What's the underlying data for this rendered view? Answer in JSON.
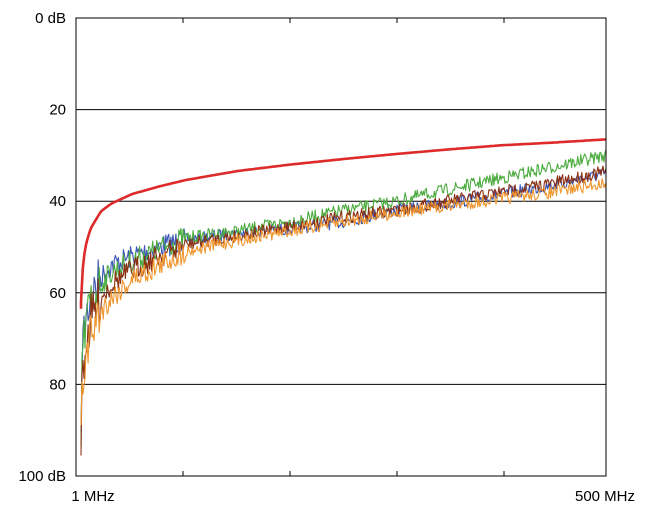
{
  "chart_data": {
    "type": "line",
    "x_start_label": "1 MHz",
    "x_end_label": "500 MHz",
    "x_range_mhz": [
      1,
      500
    ],
    "y_axis": {
      "direction": "downward",
      "range_db": [
        0,
        100
      ],
      "ticks": [
        {
          "value": 0,
          "label": "0 dB"
        },
        {
          "value": 20,
          "label": "20"
        },
        {
          "value": 40,
          "label": "40"
        },
        {
          "value": 60,
          "label": "60"
        },
        {
          "value": 80,
          "label": "80"
        },
        {
          "value": 100,
          "label": "100 dB"
        }
      ]
    },
    "grid": "horizontal lines at 0, 20, 40, 60, 80 dB",
    "series": [
      {
        "color": "#dd2a2a",
        "x": [
          1,
          2,
          5,
          10,
          20,
          30,
          50,
          75,
          100,
          150,
          200,
          250,
          300,
          350,
          400,
          450,
          500
        ],
        "y": [
          62,
          56,
          50,
          46,
          42.2,
          40.5,
          38.4,
          36.8,
          35.4,
          33.4,
          32.0,
          30.8,
          29.7,
          28.7,
          27.8,
          27.2,
          26.5
        ]
      },
      {
        "color": "#3a56b4",
        "x": [
          1,
          2,
          5,
          10,
          20,
          30,
          50,
          75,
          100,
          150,
          200,
          250,
          300,
          350,
          400,
          450,
          500
        ],
        "y": [
          96,
          72,
          66,
          61,
          56.5,
          54,
          52,
          50,
          48.5,
          47,
          46,
          44.5,
          42,
          40.5,
          38.5,
          36.5,
          34
        ]
      },
      {
        "color": "#4bab3e",
        "x": [
          1,
          2,
          5,
          10,
          20,
          30,
          50,
          75,
          100,
          150,
          200,
          250,
          300,
          350,
          400,
          450,
          500
        ],
        "y": [
          92,
          74,
          68,
          62,
          58,
          55.5,
          53,
          50.5,
          48,
          46.5,
          44.5,
          42,
          40,
          37.5,
          35,
          32.5,
          30
        ]
      },
      {
        "color": "#8b2f12",
        "x": [
          1,
          2,
          5,
          10,
          20,
          30,
          50,
          75,
          100,
          150,
          200,
          250,
          300,
          350,
          400,
          450,
          500
        ],
        "y": [
          92,
          78,
          72,
          66,
          61,
          58,
          55,
          52,
          49.5,
          47.5,
          45.5,
          43.5,
          42,
          40,
          38,
          36,
          33.5
        ]
      },
      {
        "color": "#f0962e",
        "x": [
          1,
          2,
          5,
          10,
          20,
          30,
          50,
          75,
          100,
          150,
          200,
          250,
          300,
          350,
          400,
          450,
          500
        ],
        "y": [
          94,
          80,
          75,
          69,
          64,
          61,
          57,
          54,
          51,
          48.5,
          46.5,
          44.5,
          42.5,
          41,
          39.5,
          38,
          36
        ]
      }
    ]
  }
}
